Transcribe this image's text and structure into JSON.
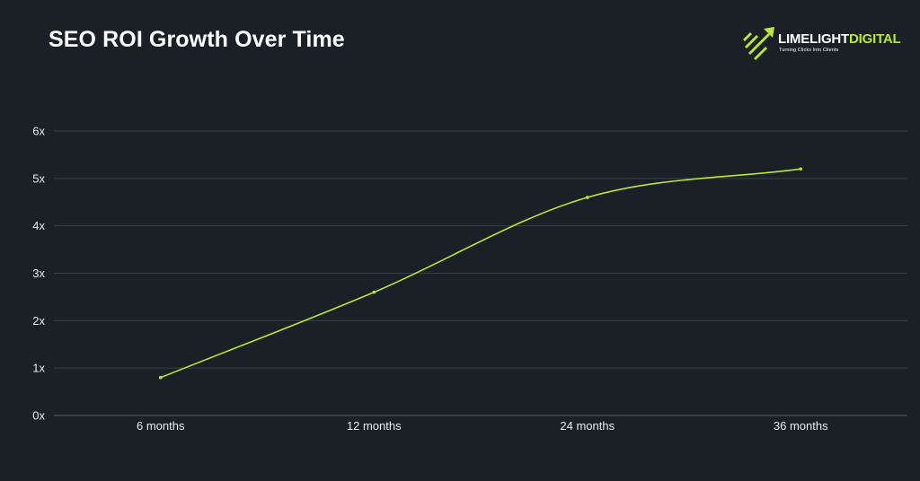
{
  "chart_data": {
    "type": "line",
    "title": "SEO ROI Growth Over Time",
    "xlabel": "",
    "ylabel": "",
    "categories": [
      "6 months",
      "12 months",
      "24 months",
      "36 months"
    ],
    "series": [
      {
        "values": [
          0.8,
          2.6,
          4.6,
          5.2
        ]
      }
    ],
    "ylim": [
      0,
      6
    ],
    "yticks": [
      0,
      1,
      2,
      3,
      4,
      5,
      6
    ],
    "ytick_labels": [
      "0x",
      "1x",
      "2x",
      "3x",
      "4x",
      "5x",
      "6x"
    ],
    "grid": true,
    "legend": "none",
    "colors": {
      "background": "#1b2027",
      "line": "#b9ea2b",
      "grid": "#3a3f47",
      "axis": "#5a5f66",
      "text": "#e9ecef"
    }
  },
  "brand": {
    "name_part1": "LIMELIGHT",
    "name_part2": "DIGITAL",
    "tagline": "Turning Clicks Into Clients",
    "icon": "rocket-arrow-icon"
  }
}
